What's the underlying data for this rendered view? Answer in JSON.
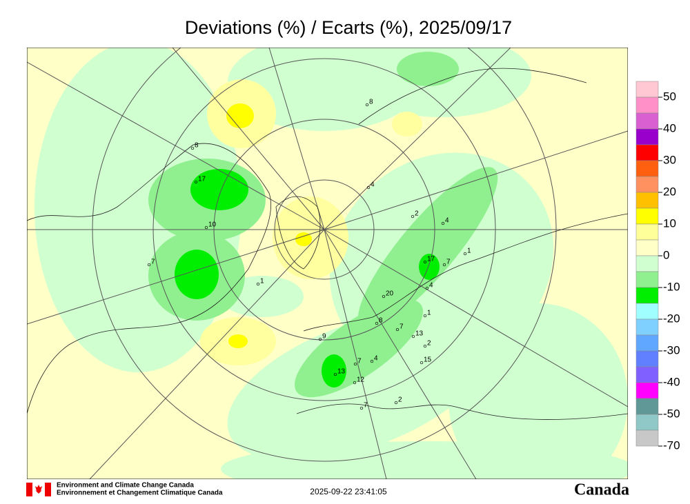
{
  "title": "Deviations (%) / Ecarts (%), 2025/09/17",
  "legend": {
    "labels": [
      50,
      40,
      30,
      20,
      10,
      0,
      -10,
      -20,
      -30,
      -40,
      -50,
      -70
    ],
    "colors": [
      "#ffc8d2",
      "#ff90c8",
      "#d860d0",
      "#9900cc",
      "#ff0000",
      "#ff6010",
      "#ff9060",
      "#ffc000",
      "#ffff00",
      "#ffff9a",
      "#ffffc8",
      "#d0ffd0",
      "#90f090",
      "#00ee00",
      "#a0ffff",
      "#80d0ff",
      "#60a8ff",
      "#6080ff",
      "#8060ff",
      "#ff00ff",
      "#609898",
      "#90c8c8",
      "#c8c8c8"
    ]
  },
  "stations": [
    "17",
    "10",
    "7",
    "1",
    "8",
    "8",
    "4",
    "2",
    "4",
    "17",
    "7",
    "1",
    "4",
    "1",
    "13",
    "7",
    "2",
    "15",
    "4",
    "12",
    "13",
    "7",
    "9",
    "2",
    "7",
    "20",
    "8"
  ],
  "footer": {
    "agency_en": "Environment and Climate Change Canada",
    "agency_fr": "Environnement et Changement Climatique Canada",
    "timestamp": "2025-09-22 23:41:05",
    "wordmark": "Canada"
  }
}
